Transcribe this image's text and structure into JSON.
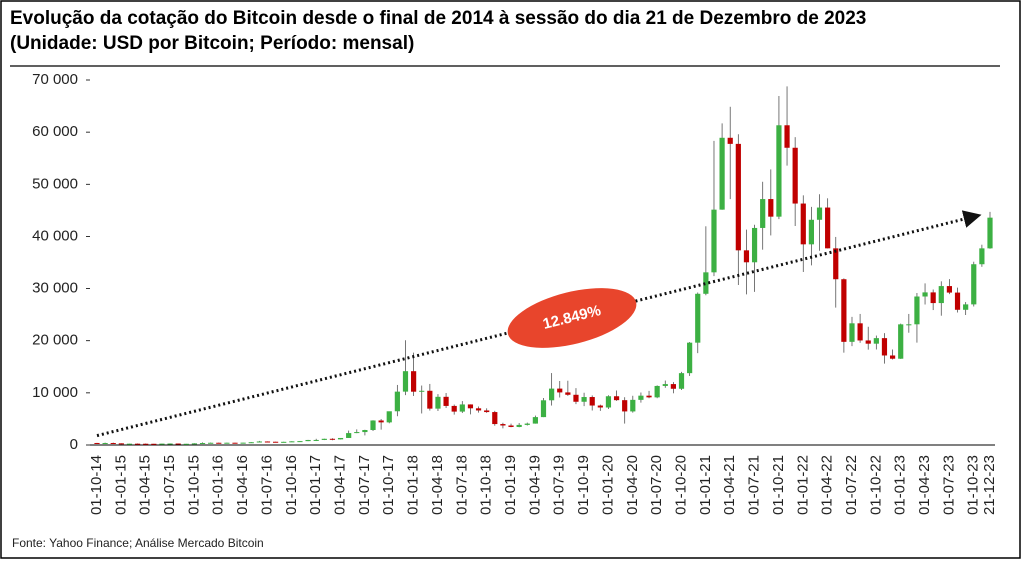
{
  "title": "Evolução da cotação do Bitcoin desde o final de 2014 à sessão do dia 21 de Dezembro de 2023",
  "subtitle": "(Unidade: USD por Bitcoin; Período: mensal)",
  "source": "Fonte: Yahoo Finance; Análise Mercado Bitcoin",
  "chart_data": {
    "type": "candlestick",
    "annotation": "12.849%",
    "trend_line": {
      "values": [
        1800,
        44000
      ]
    },
    "up_color": "#3cb043",
    "down_color": "#c00000",
    "ylim": [
      0,
      70000
    ],
    "yticks": [
      0,
      {
        "value": 10000,
        "label": "10 000"
      },
      {
        "value": 20000,
        "label": "20 000"
      },
      {
        "value": 30000,
        "label": "30 000"
      },
      {
        "value": 40000,
        "label": "40 000"
      },
      {
        "value": 50000,
        "label": "50 000"
      },
      {
        "value": 60000,
        "label": "60 000"
      },
      {
        "value": 70000,
        "label": "70 000"
      }
    ],
    "categories": [
      "01-10-14",
      null,
      null,
      "01-01-15",
      null,
      null,
      "01-04-15",
      null,
      null,
      "01-07-15",
      null,
      null,
      "01-10-15",
      null,
      null,
      "01-01-16",
      null,
      null,
      "01-04-16",
      null,
      null,
      "01-07-16",
      null,
      null,
      "01-10-16",
      null,
      null,
      "01-01-17",
      null,
      null,
      "01-04-17",
      null,
      null,
      "01-07-17",
      null,
      null,
      "01-10-17",
      null,
      null,
      "01-01-18",
      null,
      null,
      "01-04-18",
      null,
      null,
      "01-07-18",
      null,
      null,
      "01-10-18",
      null,
      null,
      "01-01-19",
      null,
      null,
      "01-04-19",
      null,
      null,
      "01-07-19",
      null,
      null,
      "01-10-19",
      null,
      null,
      "01-01-20",
      null,
      null,
      "01-04-20",
      null,
      null,
      "01-07-20",
      null,
      null,
      "01-10-20",
      null,
      null,
      "01-01-21",
      null,
      null,
      "01-04-21",
      null,
      null,
      "01-07-21",
      null,
      null,
      "01-10-21",
      null,
      null,
      "01-01-22",
      null,
      null,
      "01-04-22",
      null,
      null,
      "01-07-22",
      null,
      null,
      "01-10-22",
      null,
      null,
      "01-01-23",
      null,
      null,
      "01-04-23",
      null,
      null,
      "01-07-23",
      null,
      null,
      "01-10-23",
      null,
      "21-12-23"
    ],
    "open": [
      388,
      338,
      378,
      320,
      217,
      254,
      244,
      236,
      230,
      263,
      284,
      230,
      236,
      314,
      377,
      430,
      369,
      437,
      416,
      449,
      531,
      674,
      625,
      573,
      609,
      701,
      743,
      964,
      970,
      1190,
      1080,
      1348,
      2286,
      2481,
      2875,
      4703,
      4339,
      6468,
      10234,
      14157,
      10221,
      10397,
      6973,
      9240,
      7494,
      6404,
      7780,
      7037,
      6625,
      6317,
      4017,
      3742,
      3457,
      3854,
      4105,
      5350,
      8574,
      10817,
      10085,
      9630,
      8293,
      9199,
      7569,
      7193,
      9350,
      8599,
      6438,
      8658,
      9461,
      9137,
      11323,
      11681,
      10784,
      13781,
      19625,
      29001,
      33114,
      45137,
      58918,
      57750,
      37332,
      35040,
      41626,
      47166,
      43790,
      61318,
      57005,
      46306,
      38483,
      43193,
      45538,
      37714,
      31792,
      19785,
      23336,
      20050,
      19431,
      20495,
      17168,
      16547,
      23139,
      23147,
      28478,
      29268,
      27219,
      30477,
      29230,
      25931,
      26968,
      34668,
      37713
    ],
    "high": [
      411,
      457,
      456,
      321,
      265,
      301,
      298,
      248,
      268,
      315,
      284,
      245,
      332,
      504,
      466,
      456,
      444,
      439,
      466,
      554,
      780,
      704,
      626,
      622,
      731,
      753,
      979,
      1191,
      1208,
      1291,
      1350,
      2763,
      2999,
      2917,
      4737,
      4976,
      6375,
      11517,
      20089,
      17712,
      11403,
      11711,
      9745,
      9964,
      7754,
      8424,
      7780,
      7389,
      7034,
      6553,
      4271,
      4109,
      4210,
      4296,
      5642,
      9008,
      13796,
      12273,
      12326,
      10898,
      10021,
      9505,
      7744,
      9553,
      10457,
      9167,
      9440,
      10067,
      10380,
      11434,
      12359,
      12067,
      14028,
      19749,
      29244,
      41946,
      58330,
      61683,
      64863,
      59593,
      41295,
      42235,
      50482,
      52853,
      66930,
      68789,
      59041,
      47881,
      45661,
      48086,
      47313,
      39902,
      31957,
      24572,
      25135,
      22673,
      20988,
      21446,
      18318,
      23282,
      25135,
      29160,
      30999,
      29820,
      31390,
      31804,
      30176,
      27409,
      35150,
      38415,
      44700
    ],
    "low": [
      289,
      326,
      311,
      152,
      212,
      236,
      212,
      225,
      221,
      253,
      198,
      224,
      236,
      299,
      356,
      355,
      366,
      394,
      415,
      438,
      510,
      604,
      471,
      565,
      605,
      679,
      741,
      755,
      946,
      900,
      1061,
      1348,
      2270,
      1834,
      2690,
      2946,
      4164,
      5519,
      9571,
      9402,
      6048,
      6601,
      6526,
      7090,
      5826,
      6132,
      5880,
      6197,
      6166,
      3696,
      3191,
      3401,
      3400,
      3734,
      4096,
      5350,
      7565,
      9111,
      9421,
      7830,
      7446,
      6617,
      6540,
      6914,
      8470,
      4106,
      6202,
      8133,
      8975,
      8977,
      10967,
      9916,
      10544,
      13244,
      17619,
      28722,
      32384,
      45115,
      47159,
      30681,
      28893,
      29360,
      37458,
      40192,
      43320,
      53569,
      42000,
      33184,
      34459,
      37260,
      37697,
      26350,
      17708,
      18966,
      19600,
      18290,
      18319,
      15599,
      16398,
      16521,
      21532,
      19628,
      26942,
      25878,
      24797,
      28934,
      25409,
      24930,
      26559,
      34170,
      37629
    ],
    "close": [
      338,
      378,
      320,
      217,
      254,
      244,
      236,
      230,
      263,
      284,
      230,
      236,
      314,
      377,
      430,
      369,
      437,
      416,
      449,
      531,
      674,
      625,
      573,
      609,
      701,
      743,
      964,
      970,
      1190,
      1080,
      1348,
      2286,
      2481,
      2875,
      4703,
      4339,
      6468,
      10234,
      14157,
      10221,
      10397,
      6973,
      9240,
      7494,
      6404,
      7780,
      7037,
      6625,
      6317,
      4017,
      3742,
      3457,
      3854,
      4105,
      5350,
      8574,
      10817,
      10085,
      9630,
      8293,
      9199,
      7569,
      7193,
      9350,
      8599,
      6438,
      8658,
      9461,
      9137,
      11323,
      11681,
      10784,
      13781,
      19625,
      29001,
      33114,
      45137,
      58918,
      57750,
      37332,
      35040,
      41626,
      47166,
      43790,
      61318,
      57005,
      46306,
      38483,
      43193,
      45538,
      37714,
      31792,
      19785,
      23336,
      20050,
      19431,
      20495,
      17168,
      16547,
      23139,
      23147,
      28478,
      29268,
      27219,
      30477,
      29230,
      25931,
      26968,
      34668,
      37713,
      43600
    ]
  }
}
